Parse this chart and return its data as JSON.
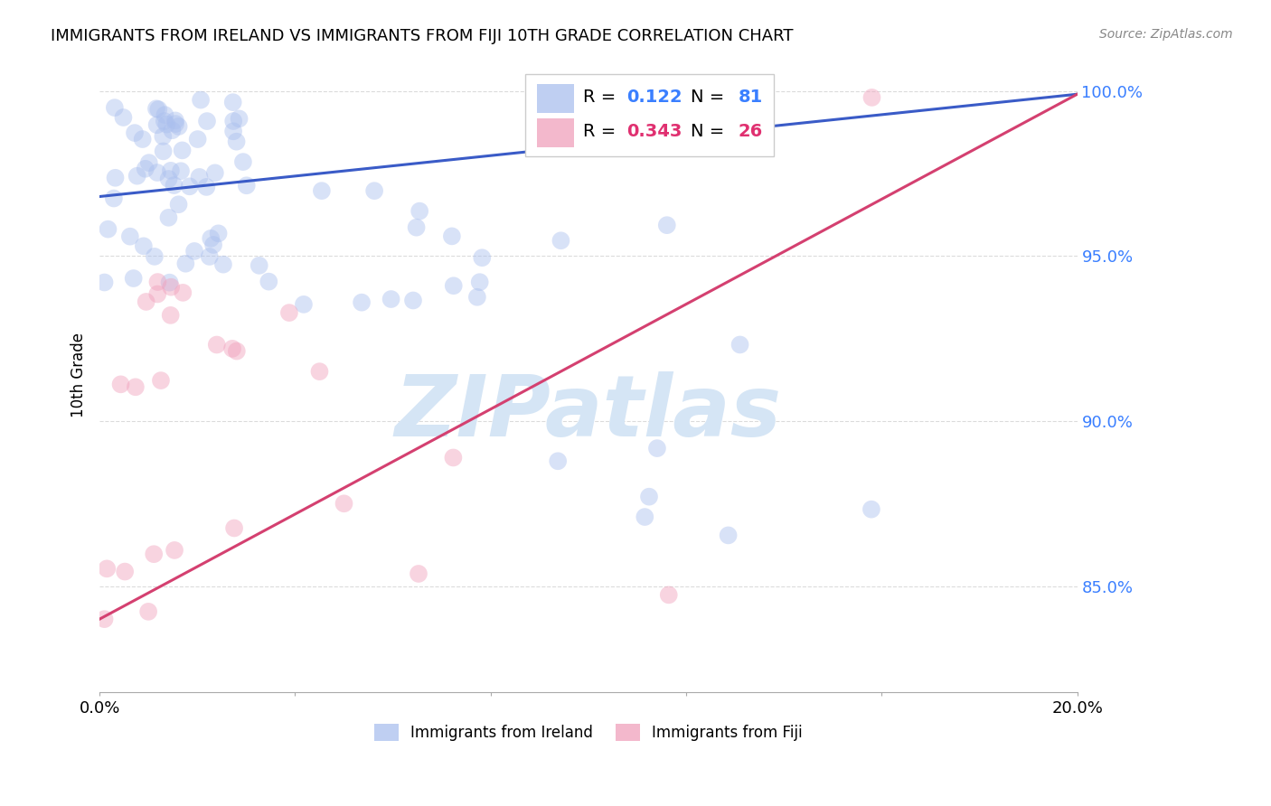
{
  "title": "IMMIGRANTS FROM IRELAND VS IMMIGRANTS FROM FIJI 10TH GRADE CORRELATION CHART",
  "source": "Source: ZipAtlas.com",
  "ylabel": "10th Grade",
  "yticks": [
    0.85,
    0.9,
    0.95,
    1.0
  ],
  "ytick_labels": [
    "85.0%",
    "90.0%",
    "95.0%",
    "100.0%"
  ],
  "xlim": [
    0.0,
    0.2
  ],
  "ylim": [
    0.818,
    1.01
  ],
  "ireland_R": 0.122,
  "ireland_N": 81,
  "fiji_R": 0.343,
  "fiji_N": 26,
  "ireland_color": "#aabfee",
  "fiji_color": "#f0a0bc",
  "ireland_line_color": "#3a5bc7",
  "fiji_line_color": "#d44070",
  "watermark_color": "#d5e5f5",
  "r_color_ireland": "#3a7fff",
  "r_color_fiji": "#e03070",
  "xtick_positions": [
    0.0,
    0.04,
    0.08,
    0.12,
    0.16,
    0.2
  ],
  "xtick_labels": [
    "0.0%",
    "",
    "",
    "",
    "",
    "20.0%"
  ],
  "grid_color": "#cccccc",
  "title_fontsize": 13,
  "source_fontsize": 10,
  "tick_fontsize": 13,
  "legend_fontsize": 14,
  "watermark_fontsize": 68,
  "scatter_size": 200,
  "scatter_alpha": 0.45,
  "ireland_line_x0": 0.0,
  "ireland_line_y0": 0.968,
  "ireland_line_x1": 0.2,
  "ireland_line_y1": 0.999,
  "fiji_line_x0": 0.0,
  "fiji_line_y0": 0.84,
  "fiji_line_x1": 0.2,
  "fiji_line_y1": 0.999
}
